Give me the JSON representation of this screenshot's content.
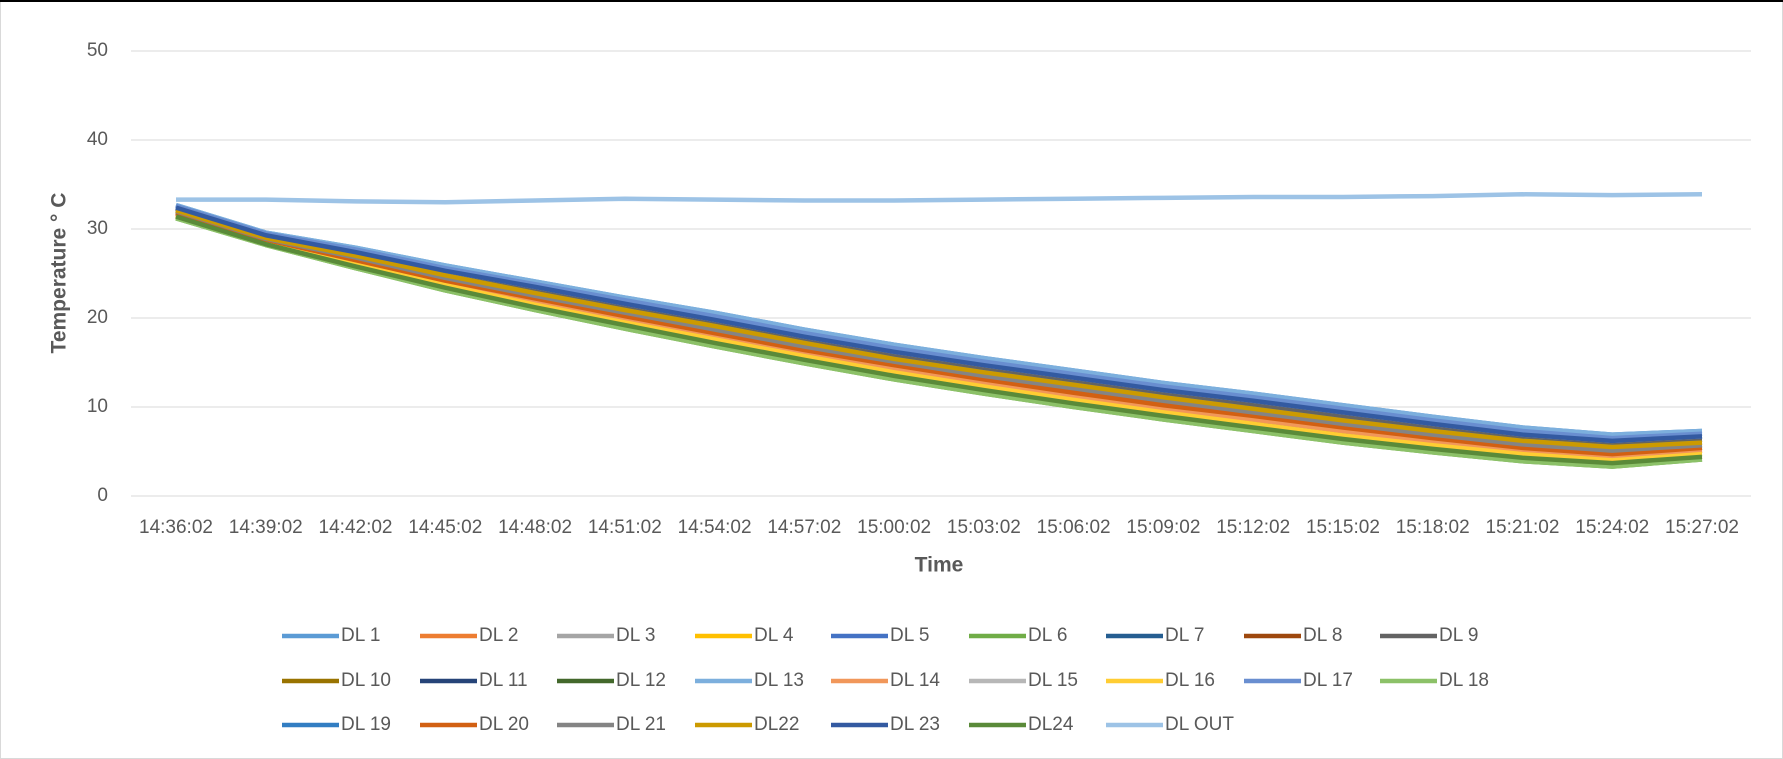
{
  "chart_data": {
    "type": "line",
    "x_label": "Time",
    "y_label": "Temperature ° C",
    "categories": [
      "14:36:02",
      "14:39:02",
      "14:42:02",
      "14:45:02",
      "14:48:02",
      "14:51:02",
      "14:54:02",
      "14:57:02",
      "15:00:02",
      "15:03:02",
      "15:06:02",
      "15:09:02",
      "15:12:02",
      "15:15:02",
      "15:18:02",
      "15:21:02",
      "15:24:02",
      "15:27:02"
    ],
    "ylim": [
      0,
      50
    ],
    "yticks": [
      0,
      10,
      20,
      30,
      40,
      50
    ],
    "grid": true,
    "legend": "bottom",
    "series": [
      {
        "name": "DL 1",
        "color": "#5b9bd5",
        "values": [
          32.7,
          29.6,
          27.9,
          25.9,
          24.1,
          22.3,
          20.6,
          18.7,
          17.0,
          15.5,
          14.1,
          12.7,
          11.5,
          10.2,
          8.9,
          7.7,
          6.9,
          7.3
        ]
      },
      {
        "name": "DL 2",
        "color": "#ed7d31",
        "values": [
          31.7,
          28.6,
          26.3,
          23.9,
          21.9,
          19.9,
          17.9,
          16.0,
          14.3,
          12.7,
          11.2,
          9.8,
          8.6,
          7.3,
          6.1,
          5.0,
          4.4,
          5.1
        ]
      },
      {
        "name": "DL 3",
        "color": "#a5a5a5",
        "values": [
          32.1,
          29.0,
          27.0,
          24.8,
          22.8,
          20.9,
          19.1,
          17.2,
          15.4,
          13.9,
          12.5,
          11.1,
          9.8,
          8.5,
          7.3,
          6.2,
          5.5,
          6.0
        ]
      },
      {
        "name": "DL 4",
        "color": "#ffc000",
        "values": [
          31.4,
          28.3,
          25.8,
          23.4,
          21.2,
          19.2,
          17.2,
          15.3,
          13.5,
          11.9,
          10.4,
          9.0,
          7.7,
          6.4,
          5.3,
          4.3,
          3.7,
          4.4
        ]
      },
      {
        "name": "DL 5",
        "color": "#4472c4",
        "values": [
          32.6,
          29.5,
          27.7,
          25.6,
          23.8,
          22.0,
          20.2,
          18.3,
          16.6,
          15.1,
          13.7,
          12.3,
          11.1,
          9.8,
          8.5,
          7.3,
          6.5,
          7.0
        ]
      },
      {
        "name": "DL 6",
        "color": "#70ad47",
        "values": [
          31.2,
          28.2,
          25.6,
          23.1,
          20.9,
          18.8,
          16.8,
          14.9,
          13.1,
          11.5,
          10.0,
          8.6,
          7.3,
          6.0,
          4.9,
          3.9,
          3.3,
          4.1
        ]
      },
      {
        "name": "DL 7",
        "color": "#255e91",
        "values": [
          32.3,
          29.2,
          27.2,
          25.1,
          23.1,
          21.3,
          19.5,
          17.6,
          15.8,
          14.3,
          12.9,
          11.5,
          10.2,
          8.9,
          7.7,
          6.6,
          5.8,
          6.3
        ]
      },
      {
        "name": "DL 8",
        "color": "#9e480e",
        "values": [
          31.8,
          28.8,
          26.5,
          24.2,
          22.2,
          20.2,
          18.3,
          16.4,
          14.7,
          13.1,
          11.6,
          10.2,
          9.0,
          7.7,
          6.5,
          5.4,
          4.7,
          5.4
        ]
      },
      {
        "name": "DL 9",
        "color": "#636363",
        "values": [
          32.3,
          29.2,
          27.2,
          25.1,
          23.1,
          21.3,
          19.5,
          17.6,
          15.8,
          14.3,
          12.9,
          11.5,
          10.2,
          8.9,
          7.7,
          6.6,
          5.8,
          6.3
        ]
      },
      {
        "name": "DL 10",
        "color": "#997300",
        "values": [
          32.0,
          28.9,
          26.8,
          24.5,
          22.5,
          20.6,
          18.7,
          16.8,
          15.1,
          13.5,
          12.1,
          10.7,
          9.4,
          8.1,
          6.9,
          5.8,
          5.1,
          5.7
        ]
      },
      {
        "name": "DL 11",
        "color": "#264478",
        "values": [
          32.4,
          29.3,
          27.4,
          25.3,
          23.5,
          21.6,
          19.8,
          17.9,
          16.2,
          14.7,
          13.3,
          11.9,
          10.7,
          9.4,
          8.1,
          6.9,
          6.2,
          6.7
        ]
      },
      {
        "name": "DL 12",
        "color": "#43682b",
        "values": [
          31.5,
          28.5,
          26.1,
          23.7,
          21.5,
          19.5,
          17.6,
          15.7,
          13.9,
          12.3,
          10.8,
          9.4,
          8.1,
          6.8,
          5.7,
          4.7,
          4.0,
          4.7
        ]
      },
      {
        "name": "DL 13",
        "color": "#7cafdd",
        "values": [
          32.7,
          29.6,
          27.9,
          25.9,
          24.1,
          22.3,
          20.6,
          18.7,
          17.0,
          15.5,
          14.1,
          12.7,
          11.5,
          10.2,
          8.9,
          7.7,
          6.9,
          7.3
        ]
      },
      {
        "name": "DL 14",
        "color": "#f1975a",
        "values": [
          31.7,
          28.6,
          26.3,
          23.9,
          21.9,
          19.9,
          17.9,
          16.0,
          14.3,
          12.7,
          11.2,
          9.8,
          8.6,
          7.3,
          6.1,
          5.0,
          4.4,
          5.1
        ]
      },
      {
        "name": "DL 15",
        "color": "#b7b7b7",
        "values": [
          32.4,
          29.3,
          27.4,
          25.3,
          23.5,
          21.6,
          19.8,
          17.9,
          16.2,
          14.7,
          13.3,
          11.9,
          10.7,
          9.4,
          8.1,
          6.9,
          6.2,
          6.7
        ]
      },
      {
        "name": "DL 16",
        "color": "#ffcd33",
        "values": [
          31.5,
          28.5,
          26.1,
          23.7,
          21.5,
          19.5,
          17.6,
          15.7,
          13.9,
          12.3,
          10.8,
          9.4,
          8.1,
          6.8,
          5.7,
          4.7,
          4.0,
          4.7
        ]
      },
      {
        "name": "DL 17",
        "color": "#698ed0",
        "values": [
          32.6,
          29.5,
          27.7,
          25.6,
          23.8,
          22.0,
          20.2,
          18.3,
          16.6,
          15.1,
          13.7,
          12.3,
          11.1,
          9.8,
          8.5,
          7.3,
          6.5,
          7.0
        ]
      },
      {
        "name": "DL 18",
        "color": "#8cc168",
        "values": [
          31.2,
          28.2,
          25.6,
          23.1,
          20.9,
          18.8,
          16.8,
          14.9,
          13.1,
          11.5,
          10.0,
          8.6,
          7.3,
          6.0,
          4.9,
          3.9,
          3.3,
          4.1
        ]
      },
      {
        "name": "DL 19",
        "color": "#327dc2",
        "values": [
          32.1,
          29.0,
          27.0,
          24.8,
          22.8,
          20.9,
          19.1,
          17.2,
          15.4,
          13.9,
          12.5,
          11.1,
          9.8,
          8.5,
          7.3,
          6.2,
          5.5,
          6.0
        ]
      },
      {
        "name": "DL 20",
        "color": "#d26012",
        "values": [
          31.8,
          28.8,
          26.5,
          24.2,
          22.2,
          20.2,
          18.3,
          16.4,
          14.7,
          13.1,
          11.6,
          10.2,
          9.0,
          7.7,
          6.5,
          5.4,
          4.7,
          5.4
        ]
      },
      {
        "name": "DL 21",
        "color": "#848484",
        "values": [
          32.0,
          28.9,
          26.8,
          24.5,
          22.5,
          20.6,
          18.7,
          16.8,
          15.1,
          13.5,
          12.1,
          10.7,
          9.4,
          8.1,
          6.9,
          5.8,
          5.1,
          5.7
        ]
      },
      {
        "name": "DL22",
        "color": "#cc9a00",
        "values": [
          32.1,
          29.0,
          27.0,
          24.8,
          22.8,
          20.9,
          19.1,
          17.2,
          15.4,
          13.9,
          12.5,
          11.1,
          9.8,
          8.5,
          7.3,
          6.2,
          5.5,
          6.0
        ]
      },
      {
        "name": "DL 23",
        "color": "#335aa1",
        "values": [
          32.4,
          29.3,
          27.4,
          25.3,
          23.5,
          21.6,
          19.8,
          17.9,
          16.2,
          14.7,
          13.3,
          11.9,
          10.7,
          9.4,
          8.1,
          6.9,
          6.2,
          6.7
        ]
      },
      {
        "name": "DL24",
        "color": "#5a8a39",
        "values": [
          31.4,
          28.3,
          25.8,
          23.4,
          21.2,
          19.2,
          17.2,
          15.3,
          13.5,
          11.9,
          10.4,
          9.0,
          7.7,
          6.4,
          5.3,
          4.3,
          3.7,
          4.4
        ]
      },
      {
        "name": "DL OUT",
        "color": "#9dc3e6",
        "values": [
          33.3,
          33.3,
          33.1,
          33.0,
          33.2,
          33.4,
          33.3,
          33.2,
          33.2,
          33.3,
          33.4,
          33.5,
          33.6,
          33.6,
          33.7,
          33.9,
          33.8,
          33.9
        ]
      }
    ]
  }
}
